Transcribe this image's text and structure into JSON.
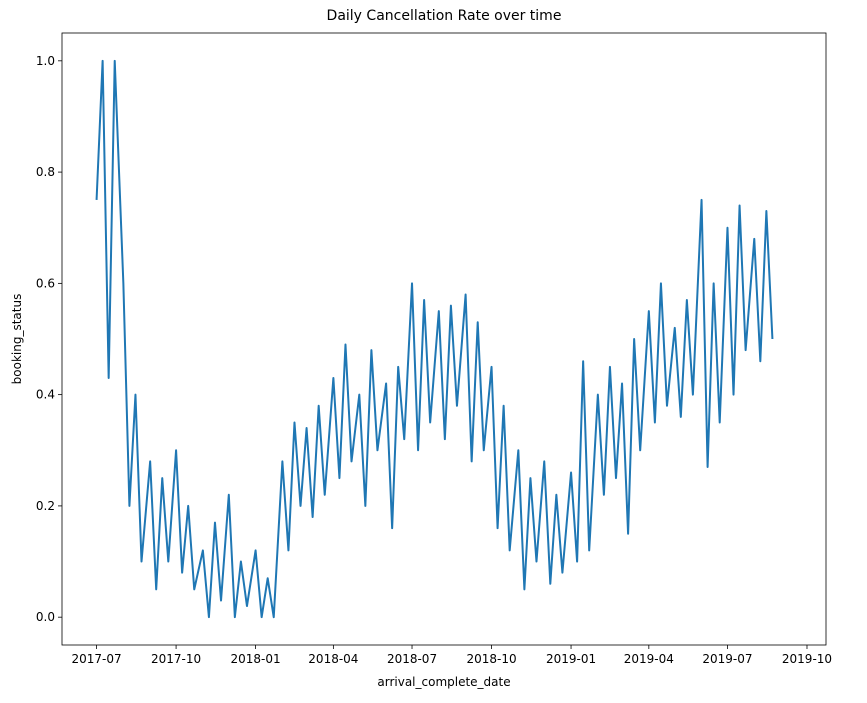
{
  "chart_data": {
    "type": "line",
    "title": "Daily Cancellation Rate over time",
    "x_label": "arrival_complete_date",
    "y_label": "booking_status",
    "xlim": [
      "2017-05-22",
      "2019-10-23"
    ],
    "ylim": [
      -0.05,
      1.05
    ],
    "xticks": [
      {
        "value": "2017-07-01",
        "label": "2017-07"
      },
      {
        "value": "2017-10-01",
        "label": "2017-10"
      },
      {
        "value": "2018-01-01",
        "label": "2018-01"
      },
      {
        "value": "2018-04-01",
        "label": "2018-04"
      },
      {
        "value": "2018-07-01",
        "label": "2018-07"
      },
      {
        "value": "2018-10-01",
        "label": "2018-10"
      },
      {
        "value": "2019-01-01",
        "label": "2019-01"
      },
      {
        "value": "2019-04-01",
        "label": "2019-04"
      },
      {
        "value": "2019-07-01",
        "label": "2019-07"
      },
      {
        "value": "2019-10-01",
        "label": "2019-10"
      }
    ],
    "yticks": [
      {
        "value": 0,
        "label": "0.0"
      },
      {
        "value": 0.2,
        "label": "0.2"
      },
      {
        "value": 0.4,
        "label": "0.4"
      },
      {
        "value": 0.6,
        "label": "0.6"
      },
      {
        "value": 0.8,
        "label": "0.8"
      },
      {
        "value": 1,
        "label": "1.0"
      }
    ],
    "grid": false,
    "color": "#1f77b4",
    "x": [
      "2017-07-01",
      "2017-07-08",
      "2017-07-15",
      "2017-07-22",
      "2017-08-01",
      "2017-08-08",
      "2017-08-15",
      "2017-08-22",
      "2017-09-01",
      "2017-09-08",
      "2017-09-15",
      "2017-09-22",
      "2017-10-01",
      "2017-10-08",
      "2017-10-15",
      "2017-10-22",
      "2017-11-01",
      "2017-11-08",
      "2017-11-15",
      "2017-11-22",
      "2017-12-01",
      "2017-12-08",
      "2017-12-15",
      "2017-12-22",
      "2018-01-01",
      "2018-01-08",
      "2018-01-15",
      "2018-01-22",
      "2018-02-01",
      "2018-02-08",
      "2018-02-15",
      "2018-02-22",
      "2018-03-01",
      "2018-03-08",
      "2018-03-15",
      "2018-03-22",
      "2018-04-01",
      "2018-04-08",
      "2018-04-15",
      "2018-04-22",
      "2018-05-01",
      "2018-05-08",
      "2018-05-15",
      "2018-05-22",
      "2018-06-01",
      "2018-06-08",
      "2018-06-15",
      "2018-06-22",
      "2018-07-01",
      "2018-07-08",
      "2018-07-15",
      "2018-07-22",
      "2018-08-01",
      "2018-08-08",
      "2018-08-15",
      "2018-08-22",
      "2018-09-01",
      "2018-09-08",
      "2018-09-15",
      "2018-09-22",
      "2018-10-01",
      "2018-10-08",
      "2018-10-15",
      "2018-10-22",
      "2018-11-01",
      "2018-11-08",
      "2018-11-15",
      "2018-11-22",
      "2018-12-01",
      "2018-12-08",
      "2018-12-15",
      "2018-12-22",
      "2019-01-01",
      "2019-01-08",
      "2019-01-15",
      "2019-01-22",
      "2019-02-01",
      "2019-02-08",
      "2019-02-15",
      "2019-02-22",
      "2019-03-01",
      "2019-03-08",
      "2019-03-15",
      "2019-03-22",
      "2019-04-01",
      "2019-04-08",
      "2019-04-15",
      "2019-04-22",
      "2019-05-01",
      "2019-05-08",
      "2019-05-15",
      "2019-05-22",
      "2019-06-01",
      "2019-06-08",
      "2019-06-15",
      "2019-06-22",
      "2019-07-01",
      "2019-07-08",
      "2019-07-15",
      "2019-07-22",
      "2019-08-01",
      "2019-08-08",
      "2019-08-15",
      "2019-08-22"
    ],
    "values": [
      0.75,
      1.0,
      0.43,
      1.0,
      0.6,
      0.2,
      0.4,
      0.1,
      0.28,
      0.05,
      0.25,
      0.1,
      0.3,
      0.08,
      0.2,
      0.05,
      0.12,
      0.0,
      0.17,
      0.03,
      0.22,
      0.0,
      0.1,
      0.02,
      0.12,
      0.0,
      0.07,
      0.0,
      0.28,
      0.12,
      0.35,
      0.2,
      0.34,
      0.18,
      0.38,
      0.22,
      0.43,
      0.25,
      0.49,
      0.28,
      0.4,
      0.2,
      0.48,
      0.3,
      0.42,
      0.16,
      0.45,
      0.32,
      0.6,
      0.3,
      0.57,
      0.35,
      0.55,
      0.32,
      0.56,
      0.38,
      0.58,
      0.28,
      0.53,
      0.3,
      0.45,
      0.16,
      0.38,
      0.12,
      0.3,
      0.05,
      0.25,
      0.1,
      0.28,
      0.06,
      0.22,
      0.08,
      0.26,
      0.1,
      0.46,
      0.12,
      0.4,
      0.22,
      0.45,
      0.25,
      0.42,
      0.15,
      0.5,
      0.3,
      0.55,
      0.35,
      0.6,
      0.38,
      0.52,
      0.36,
      0.57,
      0.4,
      0.75,
      0.27,
      0.6,
      0.35,
      0.7,
      0.4,
      0.74,
      0.48,
      0.68,
      0.46,
      0.73,
      0.5
    ]
  }
}
